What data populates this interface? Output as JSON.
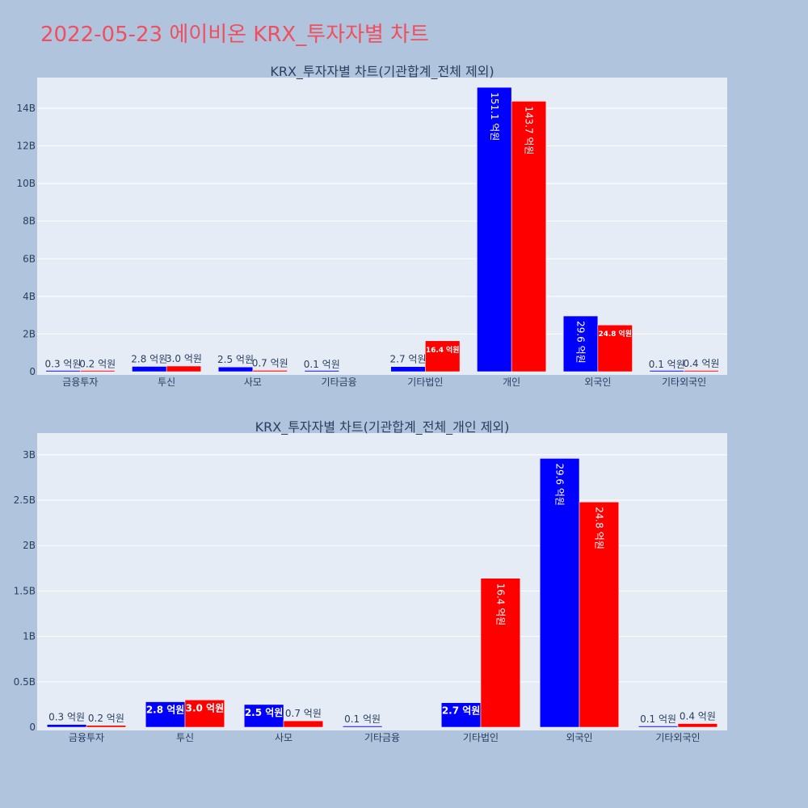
{
  "title": "2022-05-23 에이비온 KRX_투자자별 차트",
  "colors": {
    "buy": "#0000ff",
    "sell": "#ff0000",
    "plot_bg": "#e5ecf6",
    "page_bg": "#b0c4de",
    "title": "#ef4f5f"
  },
  "chart_data": [
    {
      "type": "bar",
      "title": "KRX_투자자별 차트(기관합계_전체 제외)",
      "categories": [
        "금융투자",
        "투신",
        "사모",
        "기타금융",
        "기타법인",
        "개인",
        "외국인",
        "기타외국인"
      ],
      "ylim": [
        0,
        15.2
      ],
      "yticks": [
        0,
        2,
        4,
        6,
        8,
        10,
        12,
        14
      ],
      "ytick_labels": [
        "0",
        "2B",
        "4B",
        "6B",
        "8B",
        "10B",
        "12B",
        "14B"
      ],
      "series": [
        {
          "values": [
            0.03,
            0.28,
            0.25,
            0.01,
            0.27,
            15.11,
            2.96,
            0.01
          ],
          "labels": [
            "0.3 억원",
            "2.8 억원",
            "2.5 억원",
            "0.1 억원",
            "2.7 억원",
            "151.1 억원",
            "29.6 억원",
            "0.1 억원"
          ]
        },
        {
          "values": [
            0.02,
            0.3,
            0.07,
            0,
            1.64,
            14.37,
            2.48,
            0.04
          ],
          "labels": [
            "0.2 억원",
            "3.0 억원",
            "0.7 억원",
            "",
            "16.4 억원",
            "143.7 억원",
            "24.8 억원",
            "0.4 억원"
          ]
        }
      ],
      "grid": true,
      "legend": "none"
    },
    {
      "type": "bar",
      "title": "KRX_투자자별 차트(기관합계_전체_개인 제외)",
      "categories": [
        "금융투자",
        "투신",
        "사모",
        "기타금융",
        "기타법인",
        "외국인",
        "기타외국인"
      ],
      "ylim": [
        0,
        3.15
      ],
      "yticks": [
        0,
        0.5,
        1,
        1.5,
        2,
        2.5,
        3
      ],
      "ytick_labels": [
        "0",
        "0.5B",
        "1B",
        "1.5B",
        "2B",
        "2.5B",
        "3B"
      ],
      "series": [
        {
          "values": [
            0.03,
            0.28,
            0.25,
            0.01,
            0.27,
            2.96,
            0.01
          ],
          "labels": [
            "0.3 억원",
            "2.8 억원",
            "2.5 억원",
            "0.1 억원",
            "2.7 억원",
            "29.6 억원",
            "0.1 억원"
          ]
        },
        {
          "values": [
            0.02,
            0.3,
            0.07,
            0,
            1.64,
            2.48,
            0.04
          ],
          "labels": [
            "0.2 억원",
            "3.0 억원",
            "0.7 억원",
            "",
            "16.4 억원",
            "24.8 억원",
            "0.4 억원"
          ]
        }
      ],
      "grid": true,
      "legend": "none"
    }
  ]
}
